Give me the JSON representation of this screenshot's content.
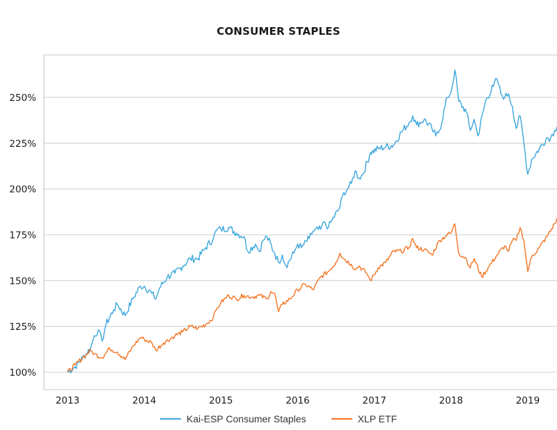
{
  "chart_data": {
    "type": "line",
    "title": "CONSUMER STAPLES",
    "xlabel": "",
    "ylabel": "",
    "x_ticks": [
      "2013",
      "2014",
      "2015",
      "2016",
      "2017",
      "2018",
      "2019"
    ],
    "y_ticks": [
      "100%",
      "125%",
      "150%",
      "175%",
      "200%",
      "225%",
      "250%"
    ],
    "xlim": [
      2012.7,
      2019.75
    ],
    "ylim": [
      94,
      270
    ],
    "grid": "horizontal",
    "legend_position": "bottom-center",
    "series": [
      {
        "name": "Kai-ESP Consumer Staples",
        "color": "#3aa6dd",
        "x": [
          2013.0,
          2013.1,
          2013.2,
          2013.3,
          2013.35,
          2013.4,
          2013.45,
          2013.5,
          2013.6,
          2013.65,
          2013.75,
          2013.85,
          2013.95,
          2014.0,
          2014.1,
          2014.15,
          2014.2,
          2014.3,
          2014.4,
          2014.5,
          2014.6,
          2014.7,
          2014.8,
          2014.9,
          2014.95,
          2015.0,
          2015.1,
          2015.2,
          2015.3,
          2015.35,
          2015.45,
          2015.5,
          2015.55,
          2015.6,
          2015.7,
          2015.75,
          2015.8,
          2015.85,
          2015.95,
          2016.0,
          2016.05,
          2016.15,
          2016.2,
          2016.3,
          2016.35,
          2016.4,
          2016.45,
          2016.55,
          2016.6,
          2016.65,
          2016.7,
          2016.75,
          2016.8,
          2016.85,
          2016.95,
          2017.05,
          2017.15,
          2017.25,
          2017.35,
          2017.45,
          2017.5,
          2017.55,
          2017.65,
          2017.75,
          2017.8,
          2017.85,
          2017.95,
          2018.0,
          2018.05,
          2018.1,
          2018.2,
          2018.25,
          2018.3,
          2018.35,
          2018.45,
          2018.55,
          2018.6,
          2018.65,
          2018.7,
          2018.75,
          2018.8,
          2018.85,
          2018.9,
          2018.95,
          2019.0,
          2019.05,
          2019.15,
          2019.25,
          2019.3,
          2019.35,
          2019.4,
          2019.45
        ],
        "values": [
          100,
          103,
          108,
          113,
          120,
          123,
          117,
          126,
          134,
          137,
          131,
          140,
          147,
          147,
          143,
          140,
          146,
          152,
          154,
          158,
          162,
          162,
          168,
          173,
          178,
          178,
          179,
          176,
          174,
          166,
          170,
          166,
          172,
          174,
          165,
          160,
          164,
          158,
          165,
          170,
          168,
          173,
          177,
          178,
          182,
          179,
          183,
          190,
          198,
          200,
          203,
          210,
          206,
          208,
          220,
          222,
          223,
          224,
          231,
          236,
          240,
          235,
          238,
          233,
          229,
          232,
          250,
          253,
          265,
          248,
          242,
          232,
          238,
          229,
          248,
          256,
          260,
          252,
          250,
          252,
          245,
          233,
          240,
          225,
          208,
          216,
          222,
          228,
          228,
          232,
          236,
          232
        ]
      },
      {
        "name": "XLP ETF",
        "color": "#f47320",
        "x": [
          2013.0,
          2013.1,
          2013.2,
          2013.3,
          2013.35,
          2013.45,
          2013.55,
          2013.65,
          2013.75,
          2013.85,
          2013.95,
          2014.0,
          2014.1,
          2014.15,
          2014.25,
          2014.4,
          2014.5,
          2014.6,
          2014.7,
          2014.8,
          2014.9,
          2014.95,
          2015.0,
          2015.1,
          2015.2,
          2015.3,
          2015.4,
          2015.5,
          2015.6,
          2015.65,
          2015.7,
          2015.75,
          2015.8,
          2015.9,
          2016.0,
          2016.1,
          2016.2,
          2016.3,
          2016.4,
          2016.5,
          2016.55,
          2016.6,
          2016.7,
          2016.75,
          2016.8,
          2016.9,
          2016.95,
          2017.05,
          2017.15,
          2017.25,
          2017.35,
          2017.45,
          2017.5,
          2017.55,
          2017.65,
          2017.75,
          2017.85,
          2017.95,
          2018.0,
          2018.05,
          2018.1,
          2018.2,
          2018.25,
          2018.3,
          2018.4,
          2018.5,
          2018.6,
          2018.7,
          2018.75,
          2018.8,
          2018.85,
          2018.9,
          2018.95,
          2019.0,
          2019.05,
          2019.15,
          2019.25,
          2019.35,
          2019.4,
          2019.45
        ],
        "values": [
          100,
          104,
          108,
          112,
          110,
          108,
          113,
          111,
          107,
          114,
          119,
          118,
          116,
          112,
          116,
          120,
          122,
          125,
          124,
          126,
          130,
          135,
          138,
          142,
          140,
          142,
          141,
          142,
          140,
          144,
          143,
          133,
          137,
          140,
          145,
          148,
          145,
          152,
          155,
          160,
          165,
          162,
          159,
          156,
          158,
          154,
          150,
          157,
          160,
          166,
          166,
          168,
          173,
          168,
          167,
          164,
          172,
          175,
          176,
          181,
          165,
          162,
          157,
          162,
          152,
          158,
          164,
          169,
          166,
          172,
          172,
          179,
          172,
          155,
          163,
          168,
          174,
          181,
          185,
          178
        ]
      }
    ]
  }
}
